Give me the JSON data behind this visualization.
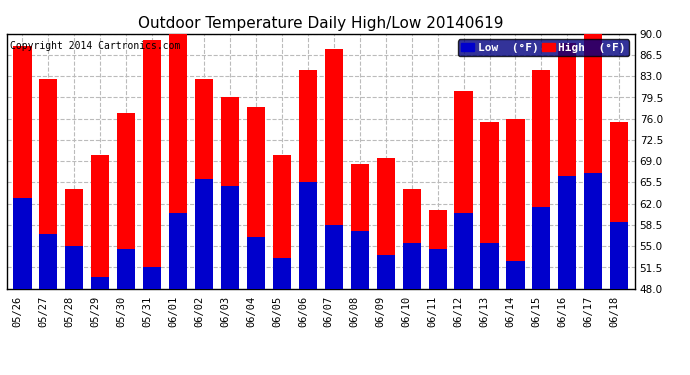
{
  "title": "Outdoor Temperature Daily High/Low 20140619",
  "copyright": "Copyright 2014 Cartronics.com",
  "legend_low": "Low  (°F)",
  "legend_high": "High  (°F)",
  "dates": [
    "05/26",
    "05/27",
    "05/28",
    "05/29",
    "05/30",
    "05/31",
    "06/01",
    "06/02",
    "06/03",
    "06/04",
    "06/05",
    "06/06",
    "06/07",
    "06/08",
    "06/09",
    "06/10",
    "06/11",
    "06/12",
    "06/13",
    "06/14",
    "06/15",
    "06/16",
    "06/17",
    "06/18"
  ],
  "highs": [
    88.0,
    82.5,
    64.5,
    70.0,
    77.0,
    89.0,
    90.0,
    82.5,
    79.5,
    78.0,
    70.0,
    84.0,
    87.5,
    68.5,
    69.5,
    64.5,
    61.0,
    80.5,
    75.5,
    76.0,
    84.0,
    88.5,
    90.5,
    75.5
  ],
  "lows": [
    63.0,
    57.0,
    55.0,
    50.0,
    54.5,
    51.5,
    60.5,
    66.0,
    65.0,
    56.5,
    53.0,
    65.5,
    58.5,
    57.5,
    53.5,
    55.5,
    54.5,
    60.5,
    55.5,
    52.5,
    61.5,
    66.5,
    67.0,
    59.0
  ],
  "ymin": 48.0,
  "ymax": 90.0,
  "yticks": [
    48.0,
    51.5,
    55.0,
    58.5,
    62.0,
    65.5,
    69.0,
    72.5,
    76.0,
    79.5,
    83.0,
    86.5,
    90.0
  ],
  "bar_color_high": "#ff0000",
  "bar_color_low": "#0000cc",
  "background_color": "#ffffff",
  "plot_bg_color": "#ffffff",
  "grid_color": "#bbbbbb",
  "title_fontsize": 11,
  "copyright_fontsize": 7,
  "tick_fontsize": 7.5,
  "legend_fontsize": 8,
  "bar_width": 0.7
}
